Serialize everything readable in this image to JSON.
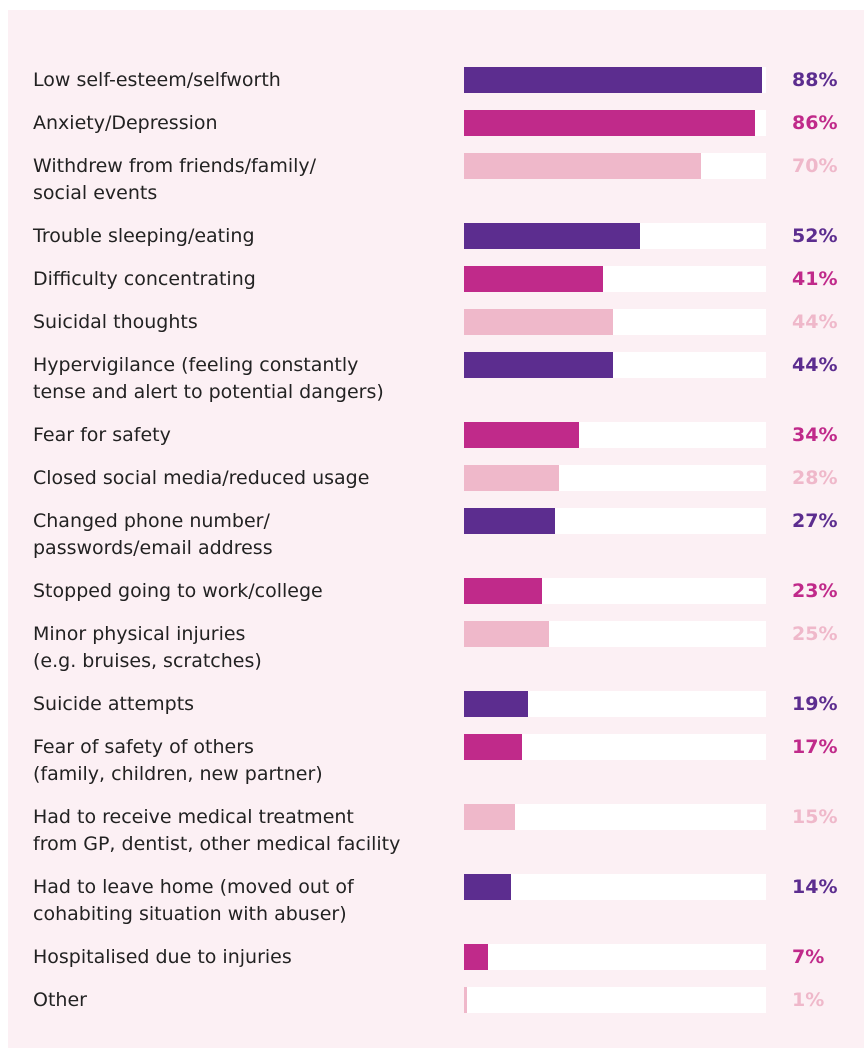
{
  "chart_data": {
    "type": "bar",
    "orientation": "horizontal",
    "categories": [
      "Low self-esteem/selfworth",
      "Anxiety/Depression",
      "Withdrew from friends/family/\nsocial events",
      "Trouble sleeping/eating",
      "Difficulty concentrating",
      "Suicidal thoughts",
      "Hypervigilance (feeling constantly\ntense and alert to potential dangers)",
      "Fear for safety",
      "Closed social media/reduced usage",
      "Changed phone number/\npasswords/email address",
      "Stopped going to work/college",
      "Minor physical injuries\n(e.g. bruises, scratches)",
      "Suicide attempts",
      "Fear of safety of others\n(family, children, new partner)",
      "Had to receive medical treatment\nfrom GP, dentist, other medical facility",
      "Had to leave home (moved out of\ncohabiting situation with abuser)",
      "Hospitalised due to injuries",
      "Other"
    ],
    "values": [
      88,
      86,
      70,
      52,
      41,
      44,
      44,
      34,
      28,
      27,
      23,
      25,
      19,
      17,
      15,
      14,
      7,
      1
    ],
    "value_labels": [
      "88%",
      "86%",
      "70%",
      "52%",
      "41%",
      "44%",
      "44%",
      "34%",
      "28%",
      "27%",
      "23%",
      "25%",
      "19%",
      "17%",
      "15%",
      "14%",
      "7%",
      "1%"
    ],
    "colors": [
      "#5c2d8f",
      "#c02a8a",
      "#efb8ca",
      "#5c2d8f",
      "#c02a8a",
      "#efb8ca",
      "#5c2d8f",
      "#c02a8a",
      "#efb8ca",
      "#5c2d8f",
      "#c02a8a",
      "#efb8ca",
      "#5c2d8f",
      "#c02a8a",
      "#efb8ca",
      "#5c2d8f",
      "#c02a8a",
      "#efb8ca"
    ]
  }
}
